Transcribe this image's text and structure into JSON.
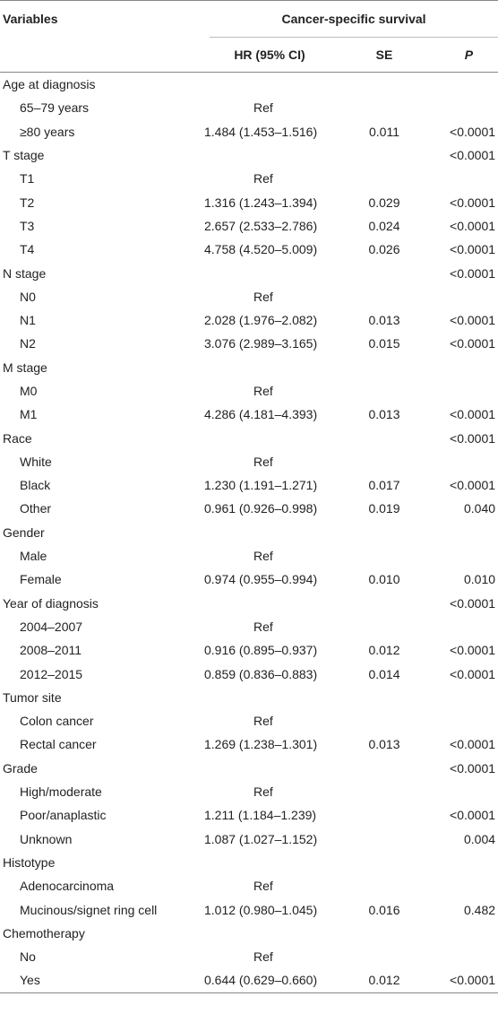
{
  "header": {
    "variables": "Variables",
    "group": "Cancer-specific survival",
    "hr": "HR (95% CI)",
    "se": "SE",
    "p": "P"
  },
  "rows": [
    {
      "label": "Age at diagnosis",
      "indent": false,
      "hr": "",
      "se": "",
      "p": ""
    },
    {
      "label": "65–79 years",
      "indent": true,
      "hr": "Ref",
      "se": "",
      "p": ""
    },
    {
      "label": "≥80 years",
      "indent": true,
      "hr": "1.484 (1.453–1.516)",
      "se": "0.011",
      "p": "<0.0001"
    },
    {
      "label": "T stage",
      "indent": false,
      "hr": "",
      "se": "",
      "p": "<0.0001"
    },
    {
      "label": "T1",
      "indent": true,
      "hr": "Ref",
      "se": "",
      "p": ""
    },
    {
      "label": "T2",
      "indent": true,
      "hr": "1.316 (1.243–1.394)",
      "se": "0.029",
      "p": "<0.0001"
    },
    {
      "label": "T3",
      "indent": true,
      "hr": "2.657 (2.533–2.786)",
      "se": "0.024",
      "p": "<0.0001"
    },
    {
      "label": "T4",
      "indent": true,
      "hr": "4.758 (4.520–5.009)",
      "se": "0.026",
      "p": "<0.0001"
    },
    {
      "label": "N stage",
      "indent": false,
      "hr": "",
      "se": "",
      "p": "<0.0001"
    },
    {
      "label": "N0",
      "indent": true,
      "hr": "Ref",
      "se": "",
      "p": ""
    },
    {
      "label": "N1",
      "indent": true,
      "hr": "2.028 (1.976–2.082)",
      "se": "0.013",
      "p": "<0.0001"
    },
    {
      "label": "N2",
      "indent": true,
      "hr": "3.076 (2.989–3.165)",
      "se": "0.015",
      "p": "<0.0001"
    },
    {
      "label": "M stage",
      "indent": false,
      "hr": "",
      "se": "",
      "p": ""
    },
    {
      "label": "M0",
      "indent": true,
      "hr": "Ref",
      "se": "",
      "p": ""
    },
    {
      "label": "M1",
      "indent": true,
      "hr": "4.286 (4.181–4.393)",
      "se": "0.013",
      "p": "<0.0001"
    },
    {
      "label": "Race",
      "indent": false,
      "hr": "",
      "se": "",
      "p": "<0.0001"
    },
    {
      "label": "White",
      "indent": true,
      "hr": "Ref",
      "se": "",
      "p": ""
    },
    {
      "label": "Black",
      "indent": true,
      "hr": "1.230 (1.191–1.271)",
      "se": "0.017",
      "p": "<0.0001"
    },
    {
      "label": "Other",
      "indent": true,
      "hr": "0.961 (0.926–0.998)",
      "se": "0.019",
      "p": "0.040"
    },
    {
      "label": "Gender",
      "indent": false,
      "hr": "",
      "se": "",
      "p": ""
    },
    {
      "label": "Male",
      "indent": true,
      "hr": "Ref",
      "se": "",
      "p": ""
    },
    {
      "label": "Female",
      "indent": true,
      "hr": "0.974 (0.955–0.994)",
      "se": "0.010",
      "p": "0.010"
    },
    {
      "label": "Year of diagnosis",
      "indent": false,
      "hr": "",
      "se": "",
      "p": "<0.0001"
    },
    {
      "label": "2004–2007",
      "indent": true,
      "hr": "Ref",
      "se": "",
      "p": ""
    },
    {
      "label": "2008–2011",
      "indent": true,
      "hr": "0.916 (0.895–0.937)",
      "se": "0.012",
      "p": "<0.0001"
    },
    {
      "label": "2012–2015",
      "indent": true,
      "hr": "0.859 (0.836–0.883)",
      "se": "0.014",
      "p": "<0.0001"
    },
    {
      "label": "Tumor site",
      "indent": false,
      "hr": "",
      "se": "",
      "p": ""
    },
    {
      "label": "Colon cancer",
      "indent": true,
      "hr": "Ref",
      "se": "",
      "p": ""
    },
    {
      "label": "Rectal cancer",
      "indent": true,
      "hr": "1.269 (1.238–1.301)",
      "se": "0.013",
      "p": "<0.0001"
    },
    {
      "label": "Grade",
      "indent": false,
      "hr": "",
      "se": "",
      "p": "<0.0001"
    },
    {
      "label": "High/moderate",
      "indent": true,
      "hr": "Ref",
      "se": "",
      "p": ""
    },
    {
      "label": "Poor/anaplastic",
      "indent": true,
      "hr": "1.211 (1.184–1.239)",
      "se": "",
      "p": "<0.0001"
    },
    {
      "label": "Unknown",
      "indent": true,
      "hr": "1.087 (1.027–1.152)",
      "se": "",
      "p": "0.004"
    },
    {
      "label": "Histotype",
      "indent": false,
      "hr": "",
      "se": "",
      "p": ""
    },
    {
      "label": "Adenocarcinoma",
      "indent": true,
      "hr": "Ref",
      "se": "",
      "p": ""
    },
    {
      "label": "Mucinous/signet ring cell",
      "indent": true,
      "hr": "1.012 (0.980–1.045)",
      "se": "0.016",
      "p": "0.482"
    },
    {
      "label": "Chemotherapy",
      "indent": false,
      "hr": "",
      "se": "",
      "p": ""
    },
    {
      "label": "No",
      "indent": true,
      "hr": "Ref",
      "se": "",
      "p": ""
    },
    {
      "label": "Yes",
      "indent": true,
      "hr": "0.644 (0.629–0.660)",
      "se": "0.012",
      "p": "<0.0001"
    }
  ]
}
